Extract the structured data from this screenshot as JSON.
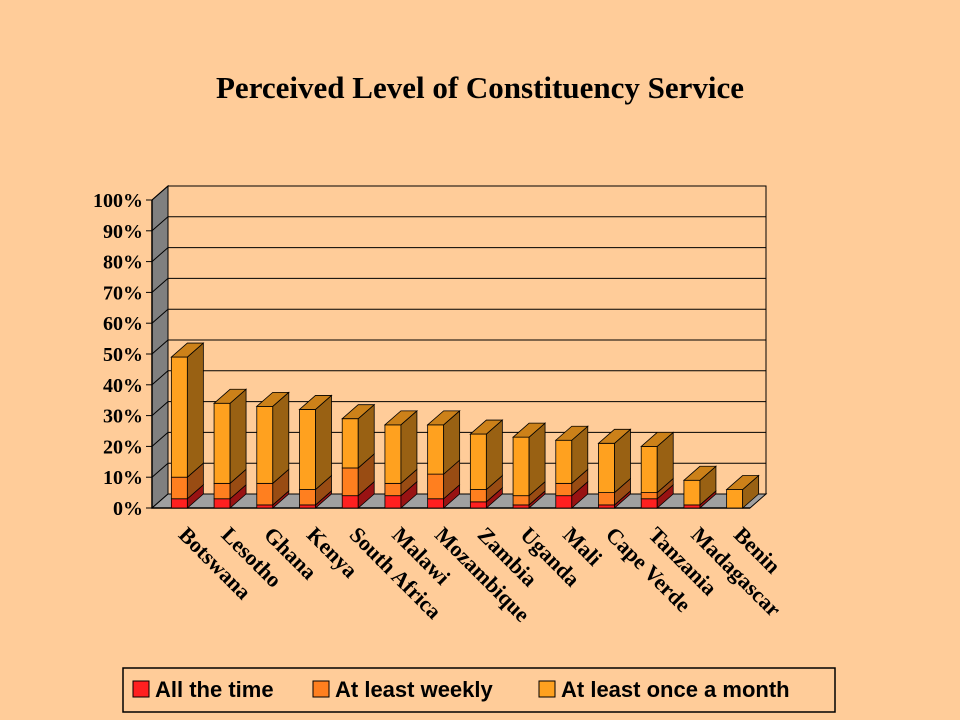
{
  "chart_data": {
    "type": "bar",
    "stacked": true,
    "three_d": true,
    "title": "Perceived Level of Constituency Service",
    "categories": [
      "Botswana",
      "Lesotho",
      "Ghana",
      "Kenya",
      "South Africa",
      "Malawi",
      "Mozambique",
      "Zambia",
      "Uganda",
      "Mali",
      "Cape Verde",
      "Tanzania",
      "Madagascar",
      "Benin"
    ],
    "series": [
      {
        "name": "All the time",
        "color": "#FF2020",
        "values": [
          3,
          3,
          1,
          1,
          4,
          4,
          3,
          2,
          1,
          4,
          1,
          3,
          1,
          0
        ]
      },
      {
        "name": "At least weekly",
        "color": "#FF7F1F",
        "values": [
          7,
          5,
          7,
          5,
          9,
          4,
          8,
          4,
          3,
          4,
          4,
          2,
          0,
          0
        ]
      },
      {
        "name": "At least once a month",
        "color": "#FFA11F",
        "values": [
          39,
          26,
          25,
          26,
          16,
          19,
          16,
          18,
          19,
          14,
          16,
          15,
          8,
          6
        ]
      }
    ],
    "ylim": [
      0,
      100
    ],
    "yticks": [
      "0%",
      "10%",
      "20%",
      "30%",
      "40%",
      "50%",
      "60%",
      "70%",
      "80%",
      "90%",
      "100%"
    ],
    "grid": true,
    "legend_position": "bottom",
    "colors": {
      "background": "#FFCC99",
      "back_wall": "#FFCC99",
      "floor": "#A0A0A0",
      "side_wall": "#808080"
    }
  }
}
